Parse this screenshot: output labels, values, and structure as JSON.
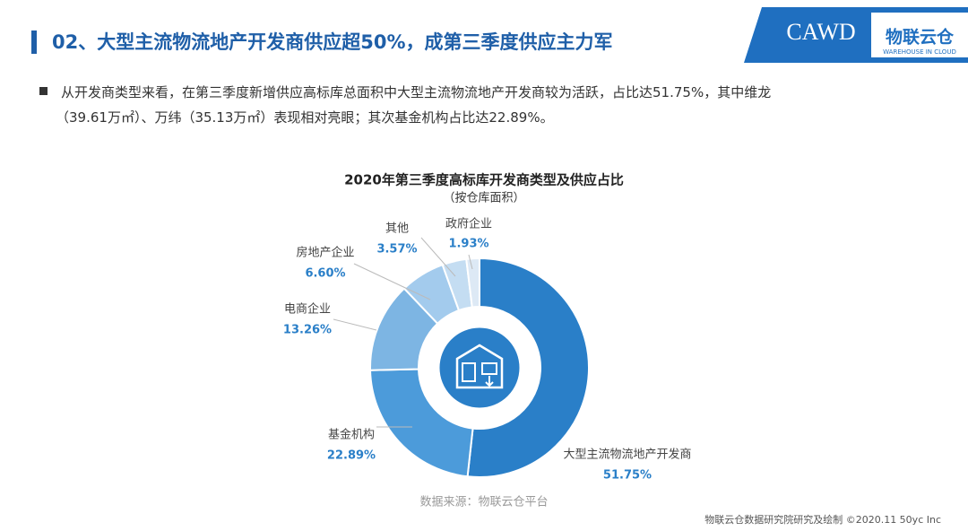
{
  "header": {
    "title": "02、大型主流物流地产开发商供应超50%，成第三季度供应主力军"
  },
  "logo": {
    "left": "CAWD",
    "right": "物联云仓",
    "right_sub": "WAREHOUSE IN CLOUD"
  },
  "bullet": {
    "lines": [
      "从开发商类型来看，在第三季度新增供应高标库总面积中大型主流物流地产开发商较为活跃，占比达51.75%，其中维龙",
      "（39.61万㎡）、万纬（35.13万㎡）表现相对亮眼；其次基金机构占比达22.89%。"
    ]
  },
  "chart_data": {
    "type": "donut",
    "title": "2020年第三季度高标库开发商类型及供应占比",
    "subtitle": "（按仓库面积）",
    "categories": [
      "大型主流物流地产开发商",
      "基金机构",
      "电商企业",
      "房地产企业",
      "其他",
      "政府企业"
    ],
    "values": [
      51.75,
      22.89,
      13.26,
      6.6,
      3.57,
      1.93
    ],
    "value_labels": [
      "51.75%",
      "22.89%",
      "13.26%",
      "6.60%",
      "3.57%",
      "1.93%"
    ],
    "colors": [
      "#2a7fc8",
      "#4c9bda",
      "#7db5e3",
      "#a3cbed",
      "#c4ddf2",
      "#dde9f5"
    ]
  },
  "source": "数据来源：物联云仓平台",
  "footer": "物联云仓数据研究院研究及绘制   ©2020.11 50yc Inc"
}
